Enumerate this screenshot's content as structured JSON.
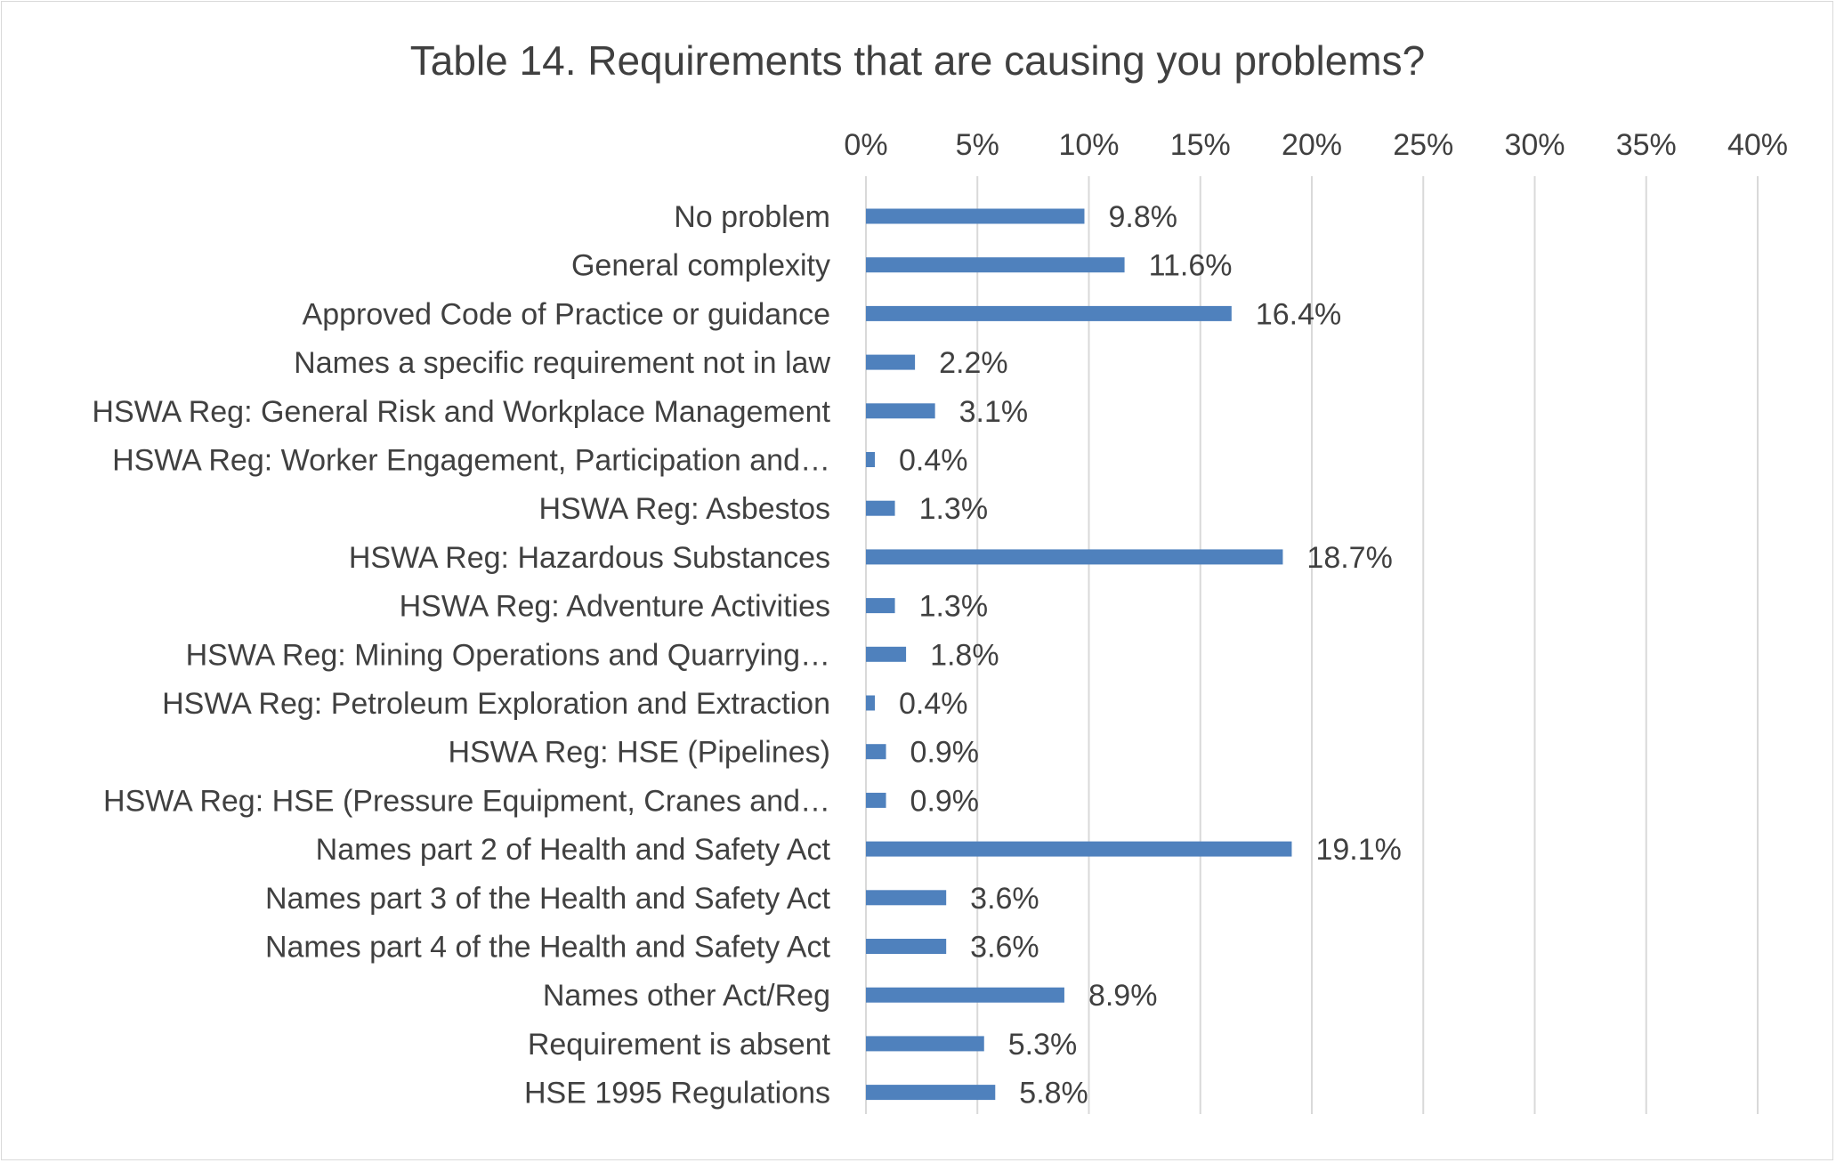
{
  "chart_data": {
    "type": "bar",
    "orientation": "horizontal",
    "title": "Table 14. Requirements that are causing you problems?",
    "xlabel": "",
    "ylabel": "",
    "xlim": [
      0,
      40
    ],
    "tick_values": [
      0,
      5,
      10,
      15,
      20,
      25,
      30,
      35,
      40
    ],
    "tick_labels": [
      "0%",
      "5%",
      "10%",
      "15%",
      "20%",
      "25%",
      "30%",
      "35%",
      "40%"
    ],
    "axis_position": "top",
    "grid": true,
    "legend": "none",
    "categories": [
      "No problem",
      "General complexity",
      "Approved Code of Practice or guidance",
      "Names a specific requirement not in law",
      "HSWA Reg: General Risk and Workplace Management",
      "HSWA Reg: Worker Engagement, Participation and…",
      "HSWA Reg: Asbestos",
      "HSWA Reg: Hazardous Substances",
      "HSWA Reg: Adventure Activities",
      "HSWA Reg: Mining Operations and Quarrying…",
      "HSWA Reg: Petroleum Exploration and Extraction",
      "HSWA Reg: HSE (Pipelines)",
      "HSWA Reg: HSE (Pressure Equipment, Cranes and…",
      "Names part 2 of Health and Safety Act",
      "Names part 3 of the Health and Safety Act",
      "Names part 4 of the Health and Safety Act",
      "Names other Act/Reg",
      "Requirement is absent",
      "HSE 1995 Regulations"
    ],
    "values": [
      9.8,
      11.6,
      16.4,
      2.2,
      3.1,
      0.4,
      1.3,
      18.7,
      1.3,
      1.8,
      0.4,
      0.9,
      0.9,
      19.1,
      3.6,
      3.6,
      8.9,
      5.3,
      5.8
    ],
    "data_labels": [
      "9.8%",
      "11.6%",
      "16.4%",
      "2.2%",
      "3.1%",
      "0.4%",
      "1.3%",
      "18.7%",
      "1.3%",
      "1.8%",
      "0.4%",
      "0.9%",
      "0.9%",
      "19.1%",
      "3.6%",
      "3.6%",
      "8.9%",
      "5.3%",
      "5.8%"
    ],
    "colors": {
      "bar": "#4f81bd",
      "grid": "#d9d9d9",
      "text": "#404040",
      "border": "#d9d9d9"
    }
  }
}
